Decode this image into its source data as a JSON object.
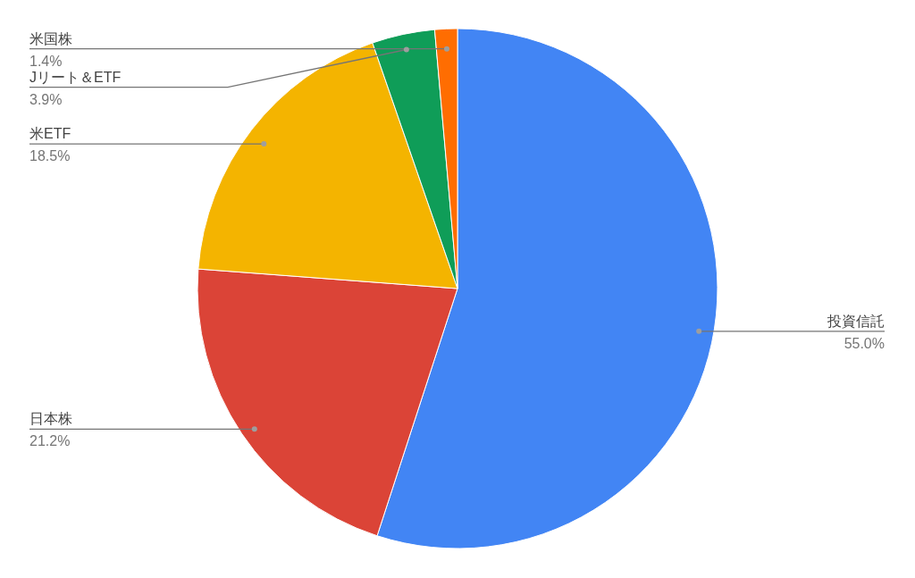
{
  "chart_data": {
    "type": "pie",
    "categories": [
      "投資信託",
      "日本株",
      "米ETF",
      "Jリート＆ETF",
      "米国株"
    ],
    "values": [
      55.0,
      21.2,
      18.5,
      3.9,
      1.4
    ],
    "value_labels": [
      "55.0%",
      "21.2%",
      "18.5%",
      "3.9%",
      "1.4%"
    ],
    "colors": [
      "#4285f4",
      "#db4437",
      "#f4b400",
      "#0f9d58",
      "#ff6d01"
    ]
  }
}
